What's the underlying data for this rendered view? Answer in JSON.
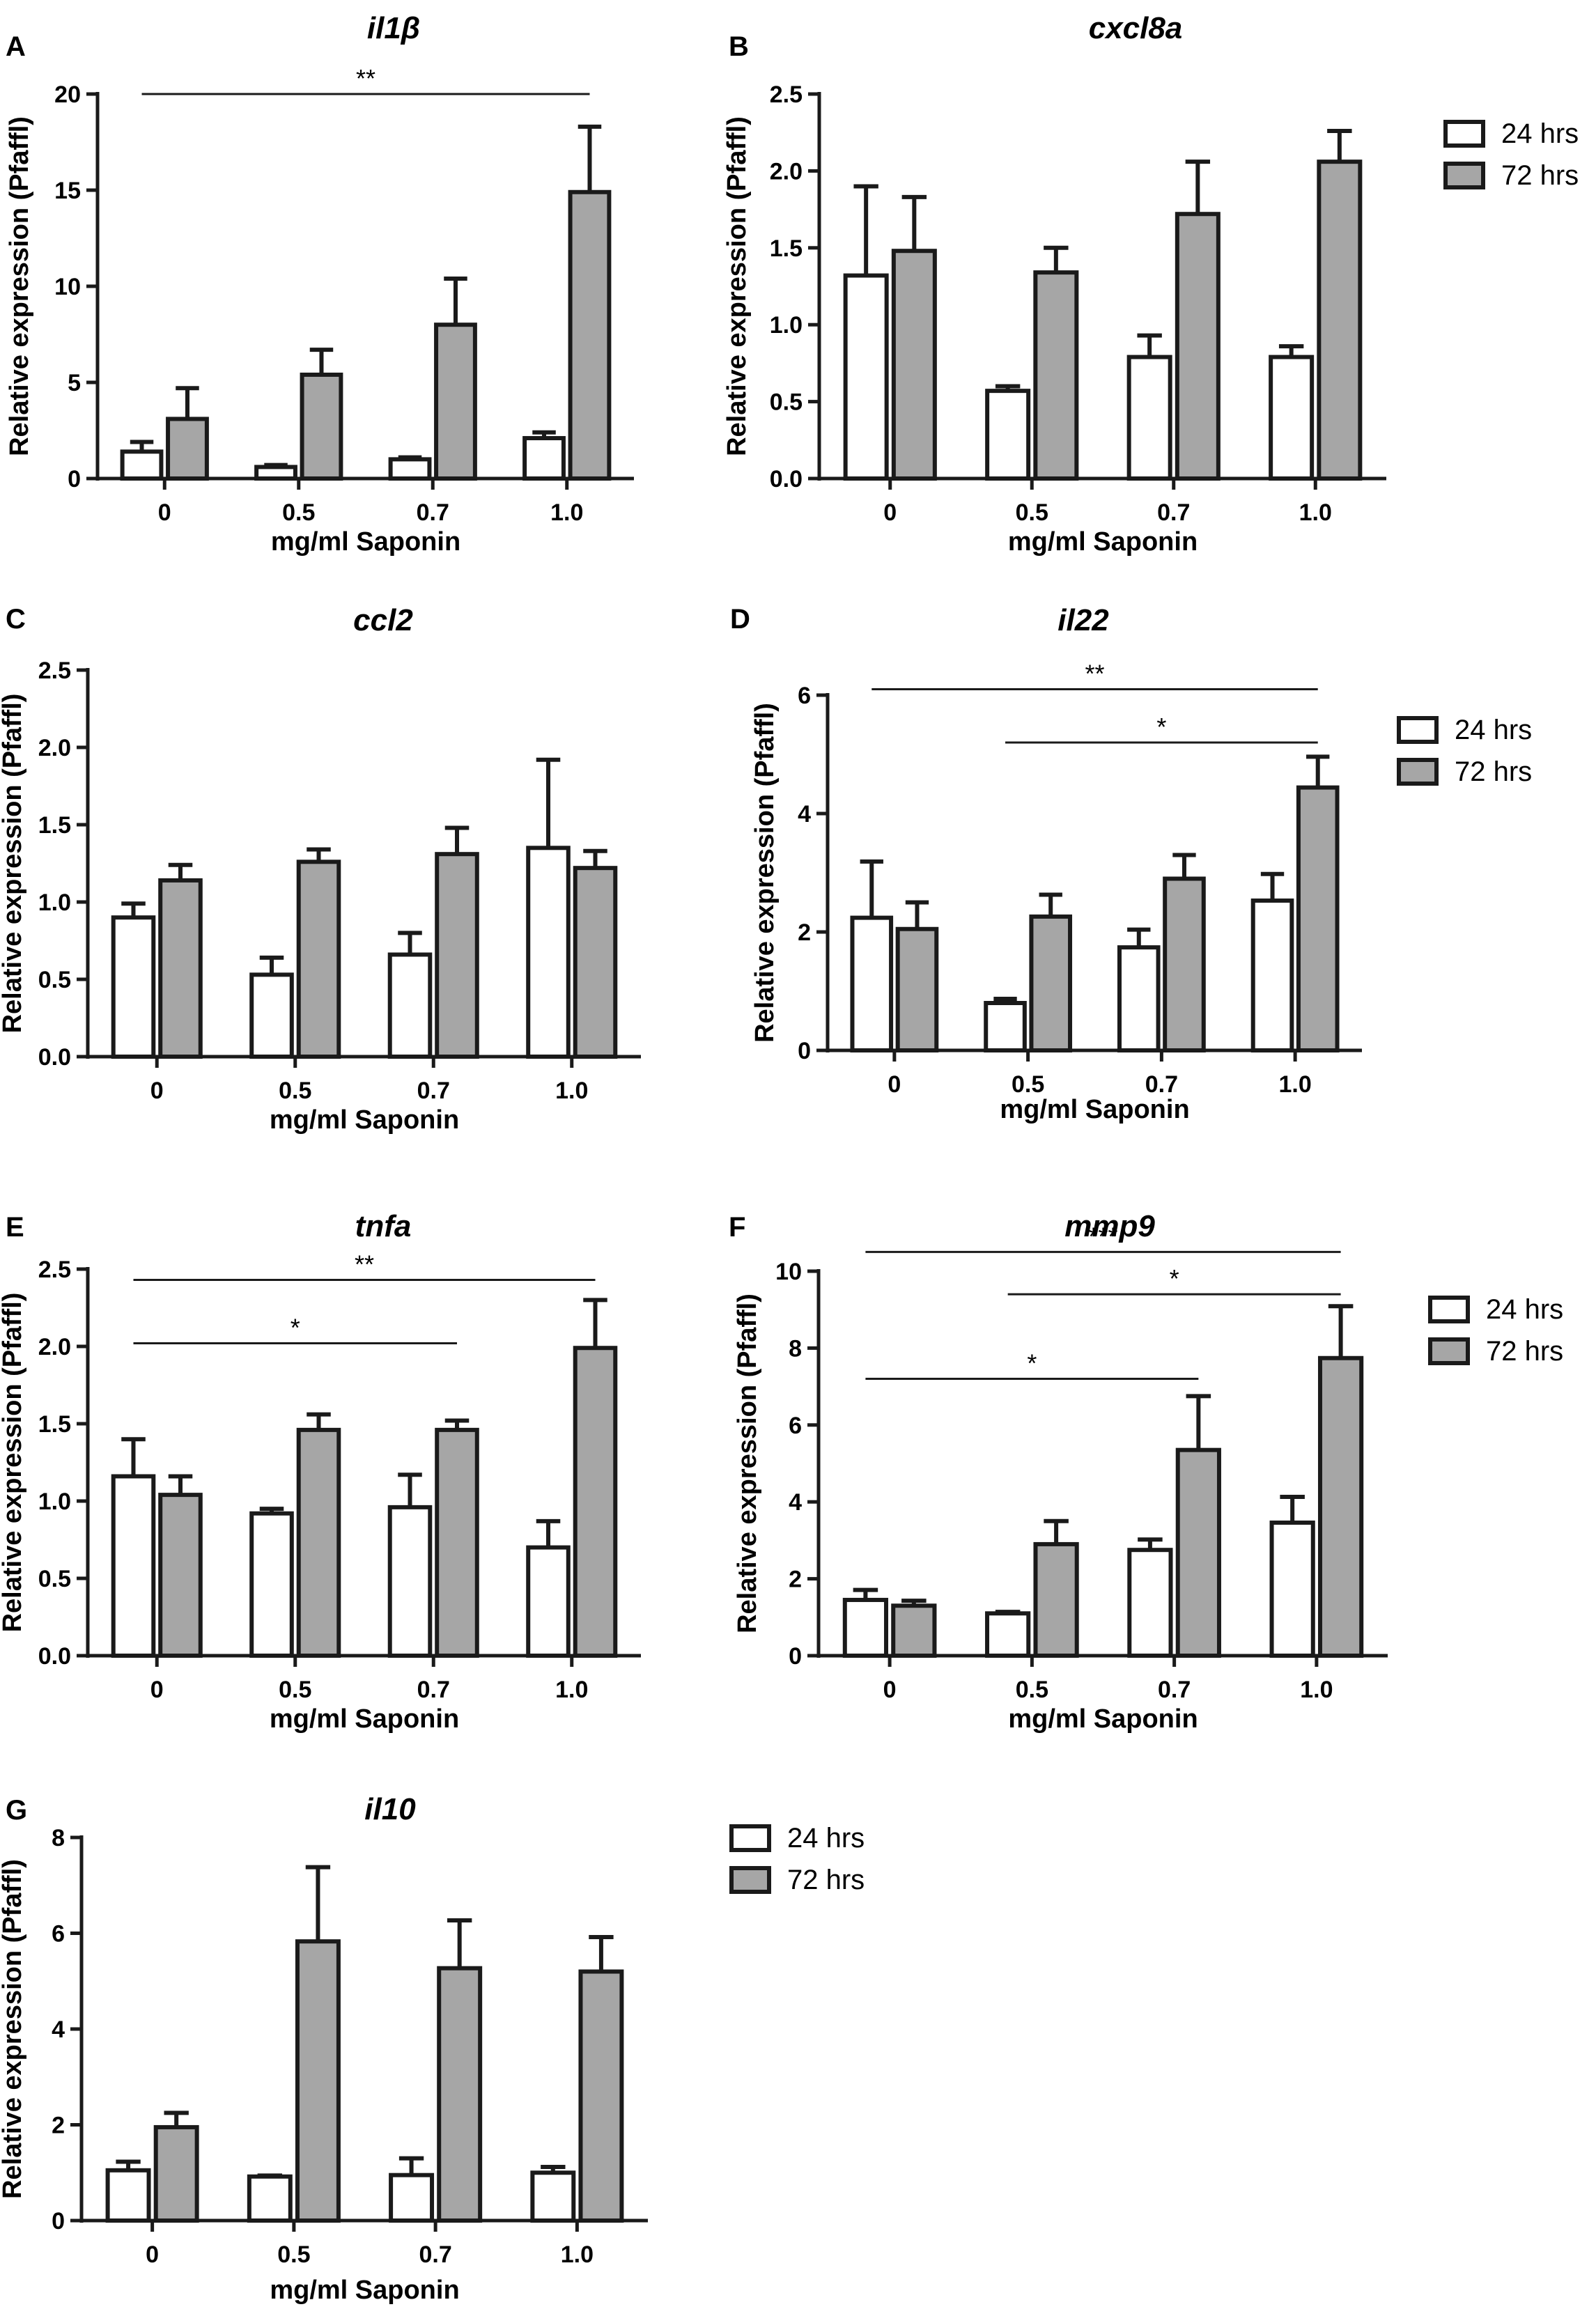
{
  "figure": {
    "colors": {
      "series_24": "#ffffff",
      "series_72": "#a6a6a6",
      "stroke": "#1a1a1a"
    }
  },
  "chart_data": [
    {
      "type": "bar",
      "panel_label": "A",
      "title": "il1β",
      "xlabel": "mg/ml Saponin",
      "ylabel": "Relative expression (Pfaffl)",
      "categories": [
        "0",
        "0.5",
        "0.7",
        "1.0"
      ],
      "ylim": [
        0,
        20
      ],
      "yticks": [
        0,
        5,
        10,
        15,
        20
      ],
      "ytick_labels": [
        "0",
        "5",
        "10",
        "15",
        "20"
      ],
      "series": [
        {
          "name": "24 hrs",
          "values": [
            1.4,
            0.6,
            1.0,
            2.1
          ],
          "errors": [
            0.5,
            0.1,
            0.1,
            0.3
          ]
        },
        {
          "name": "72 hrs",
          "values": [
            3.1,
            5.4,
            8.0,
            14.9
          ],
          "errors": [
            1.6,
            1.3,
            2.4,
            3.4
          ]
        }
      ],
      "significance": [
        {
          "from": 0,
          "to": 3,
          "label": "**",
          "level": 20
        }
      ],
      "legend": null
    },
    {
      "type": "bar",
      "panel_label": "B",
      "title": "cxcl8a",
      "xlabel": "mg/ml Saponin",
      "ylabel": "Relative expression (Pfaffl)",
      "categories": [
        "0",
        "0.5",
        "0.7",
        "1.0"
      ],
      "ylim": [
        0,
        2.5
      ],
      "yticks": [
        0,
        0.5,
        1.0,
        1.5,
        2.0,
        2.5
      ],
      "ytick_labels": [
        "0.0",
        "0.5",
        "1.0",
        "1.5",
        "2.0",
        "2.5"
      ],
      "series": [
        {
          "name": "24 hrs",
          "values": [
            1.32,
            0.57,
            0.79,
            0.79
          ],
          "errors": [
            0.58,
            0.03,
            0.14,
            0.07
          ]
        },
        {
          "name": "72 hrs",
          "values": [
            1.48,
            1.34,
            1.72,
            2.06
          ],
          "errors": [
            0.35,
            0.16,
            0.34,
            0.2
          ]
        }
      ],
      "significance": [],
      "legend": {
        "position": "top-right",
        "items": [
          "24 hrs",
          "72 hrs"
        ]
      }
    },
    {
      "type": "bar",
      "panel_label": "C",
      "title": "ccl2",
      "xlabel": "mg/ml Saponin",
      "ylabel": "Relative expression (Pfaffl)",
      "categories": [
        "0",
        "0.5",
        "0.7",
        "1.0"
      ],
      "ylim": [
        0,
        2.5
      ],
      "yticks": [
        0,
        0.5,
        1.0,
        1.5,
        2.0,
        2.5
      ],
      "ytick_labels": [
        "0.0",
        "0.5",
        "1.0",
        "1.5",
        "2.0",
        "2.5"
      ],
      "series": [
        {
          "name": "24 hrs",
          "values": [
            0.9,
            0.53,
            0.66,
            1.35
          ],
          "errors": [
            0.09,
            0.11,
            0.14,
            0.57
          ]
        },
        {
          "name": "72 hrs",
          "values": [
            1.14,
            1.26,
            1.31,
            1.22
          ],
          "errors": [
            0.1,
            0.08,
            0.17,
            0.11
          ]
        }
      ],
      "significance": [],
      "legend": null
    },
    {
      "type": "bar",
      "panel_label": "D",
      "title": "il22",
      "xlabel": "mg/ml Saponin",
      "ylabel": "Relative expression (Pfaffl)",
      "categories": [
        "0",
        "0.5",
        "0.7",
        "1.0"
      ],
      "ylim": [
        0,
        6
      ],
      "yticks": [
        0,
        2,
        4,
        6
      ],
      "ytick_labels": [
        "0",
        "2",
        "4",
        "6"
      ],
      "series": [
        {
          "name": "24 hrs",
          "values": [
            2.24,
            0.8,
            1.74,
            2.53
          ],
          "errors": [
            0.95,
            0.07,
            0.3,
            0.45
          ]
        },
        {
          "name": "72 hrs",
          "values": [
            2.05,
            2.26,
            2.9,
            4.44
          ],
          "errors": [
            0.45,
            0.37,
            0.4,
            0.52
          ]
        }
      ],
      "significance": [
        {
          "from": 0,
          "to": 3,
          "label": "**",
          "level": 6.1
        },
        {
          "from": 1,
          "to": 3,
          "label": "*",
          "level": 5.2
        }
      ],
      "legend": {
        "position": "right",
        "items": [
          "24 hrs",
          "72 hrs"
        ]
      }
    },
    {
      "type": "bar",
      "panel_label": "E",
      "title": "tnfa",
      "xlabel": "mg/ml Saponin",
      "ylabel": "Relative expression (Pfaffl)",
      "categories": [
        "0",
        "0.5",
        "0.7",
        "1.0"
      ],
      "ylim": [
        0,
        2.5
      ],
      "yticks": [
        0,
        0.5,
        1.0,
        1.5,
        2.0,
        2.5
      ],
      "ytick_labels": [
        "0.0",
        "0.5",
        "1.0",
        "1.5",
        "2.0",
        "2.5"
      ],
      "series": [
        {
          "name": "24 hrs",
          "values": [
            1.16,
            0.92,
            0.96,
            0.7
          ],
          "errors": [
            0.24,
            0.03,
            0.21,
            0.17
          ]
        },
        {
          "name": "72 hrs",
          "values": [
            1.04,
            1.46,
            1.46,
            1.99
          ],
          "errors": [
            0.12,
            0.1,
            0.06,
            0.31
          ]
        }
      ],
      "significance": [
        {
          "from": 0,
          "to": 3,
          "label": "**",
          "level": 2.43
        },
        {
          "from": 0,
          "to": 2,
          "label": "*",
          "level": 2.02
        }
      ],
      "legend": null
    },
    {
      "type": "bar",
      "panel_label": "F",
      "title": "mmp9",
      "xlabel": "mg/ml Saponin",
      "ylabel": "Relative expression (Pfaffl)",
      "categories": [
        "0",
        "0.5",
        "0.7",
        "1.0"
      ],
      "ylim": [
        0,
        10
      ],
      "yticks": [
        0,
        2,
        4,
        6,
        8,
        10
      ],
      "ytick_labels": [
        "0",
        "2",
        "4",
        "6",
        "8",
        "10"
      ],
      "series": [
        {
          "name": "24 hrs",
          "values": [
            1.45,
            1.1,
            2.75,
            3.46
          ],
          "errors": [
            0.26,
            0.04,
            0.27,
            0.67
          ]
        },
        {
          "name": "72 hrs",
          "values": [
            1.3,
            2.9,
            5.35,
            7.74
          ],
          "errors": [
            0.13,
            0.6,
            1.4,
            1.35
          ]
        }
      ],
      "significance": [
        {
          "from": 0,
          "to": 3,
          "label": "***",
          "level": 10.5
        },
        {
          "from": 1,
          "to": 3,
          "label": "*",
          "level": 9.4
        },
        {
          "from": 0,
          "to": 2,
          "label": "*",
          "level": 7.2
        }
      ],
      "legend": {
        "position": "right",
        "items": [
          "24 hrs",
          "72 hrs"
        ]
      }
    },
    {
      "type": "bar",
      "panel_label": "G",
      "title": "il10",
      "xlabel": "mg/ml Saponin",
      "ylabel": "Relative expression (Pfaffl)",
      "categories": [
        "0",
        "0.5",
        "0.7",
        "1.0"
      ],
      "ylim": [
        0,
        8
      ],
      "yticks": [
        0,
        2,
        4,
        6,
        8
      ],
      "ytick_labels": [
        "0",
        "2",
        "4",
        "6",
        "8"
      ],
      "series": [
        {
          "name": "24 hrs",
          "values": [
            1.05,
            0.92,
            0.95,
            1.0
          ],
          "errors": [
            0.18,
            0.02,
            0.35,
            0.12
          ]
        },
        {
          "name": "72 hrs",
          "values": [
            1.95,
            5.83,
            5.27,
            5.2
          ],
          "errors": [
            0.3,
            1.55,
            1.0,
            0.72
          ]
        }
      ],
      "significance": [],
      "legend": {
        "position": "right",
        "items": [
          "24 hrs",
          "72 hrs"
        ]
      }
    }
  ]
}
